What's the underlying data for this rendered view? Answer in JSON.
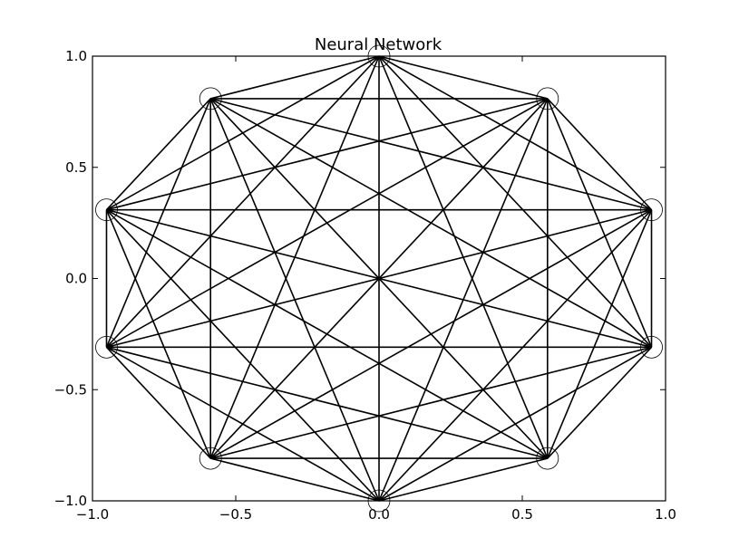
{
  "chart_data": {
    "type": "scatter",
    "title": "Neural Network",
    "xlabel": "",
    "ylabel": "",
    "xlim": [
      -1.0,
      1.0
    ],
    "ylim": [
      -1.0,
      1.0
    ],
    "grid": false,
    "x_ticks": [
      "−1.0",
      "−0.5",
      "0.0",
      "0.5",
      "1.0"
    ],
    "x_tick_values": [
      -1.0,
      -0.5,
      0.0,
      0.5,
      1.0
    ],
    "y_ticks": [
      "−1.0",
      "−0.5",
      "0.0",
      "0.5",
      "1.0"
    ],
    "y_tick_values": [
      -1.0,
      -0.5,
      0.0,
      0.5,
      1.0
    ],
    "nodes": [
      {
        "x": 0.0,
        "y": 1.0
      },
      {
        "x": 0.588,
        "y": 0.809
      },
      {
        "x": 0.951,
        "y": 0.309
      },
      {
        "x": 0.951,
        "y": -0.309
      },
      {
        "x": 0.588,
        "y": -0.809
      },
      {
        "x": 0.0,
        "y": -1.0
      },
      {
        "x": -0.588,
        "y": -0.809
      },
      {
        "x": -0.951,
        "y": -0.309
      },
      {
        "x": -0.951,
        "y": 0.309
      },
      {
        "x": -0.588,
        "y": 0.809
      }
    ],
    "edges": "all-pairs",
    "node_marker": "open-circle",
    "line_color": "#000000"
  }
}
